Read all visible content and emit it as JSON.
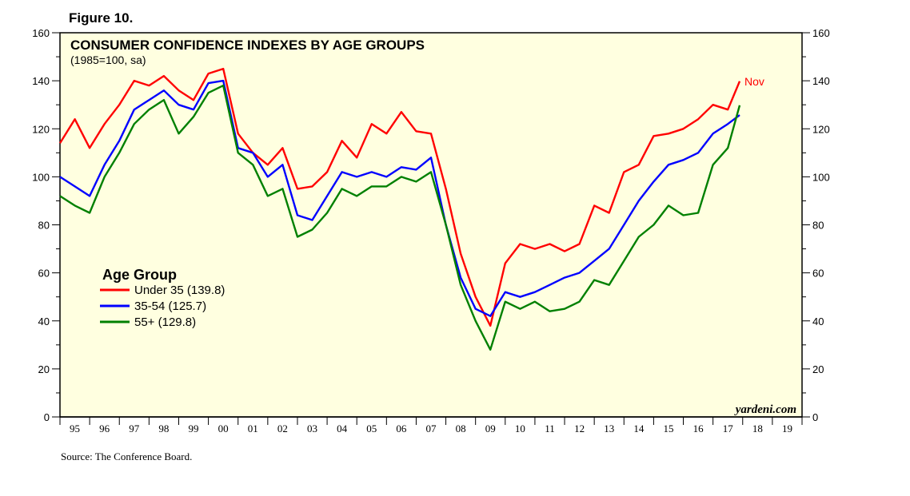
{
  "figure_label": "Figure 10.",
  "source": "Source: The Conference Board.",
  "watermark": "yardeni.com",
  "chart_data": {
    "type": "line",
    "title": "CONSUMER CONFIDENCE INDEXES BY AGE GROUPS",
    "subtitle": "(1985=100, sa)",
    "ylim": [
      0,
      160
    ],
    "y_ticks": [
      0,
      20,
      40,
      60,
      80,
      100,
      120,
      140,
      160
    ],
    "x_range": [
      1995,
      2020
    ],
    "x_labels": [
      "95",
      "96",
      "97",
      "98",
      "99",
      "00",
      "01",
      "02",
      "03",
      "04",
      "05",
      "06",
      "07",
      "08",
      "09",
      "10",
      "11",
      "12",
      "13",
      "14",
      "15",
      "16",
      "17",
      "18",
      "19"
    ],
    "grid": false,
    "background": "#ffffe0",
    "legend": {
      "title": "Age Group",
      "placement": "middle-left"
    },
    "end_annotation": "Nov",
    "series": [
      {
        "name": "Under 35 (139.8)",
        "color": "#ff0000",
        "x": [
          1995.0,
          1995.5,
          1996.0,
          1996.5,
          1997.0,
          1997.5,
          1998.0,
          1998.5,
          1999.0,
          1999.5,
          2000.0,
          2000.5,
          2001.0,
          2001.5,
          2002.0,
          2002.5,
          2003.0,
          2003.5,
          2004.0,
          2004.5,
          2005.0,
          2005.5,
          2006.0,
          2006.5,
          2007.0,
          2007.5,
          2008.0,
          2008.5,
          2009.0,
          2009.5,
          2010.0,
          2010.5,
          2011.0,
          2011.5,
          2012.0,
          2012.5,
          2013.0,
          2013.5,
          2014.0,
          2014.5,
          2015.0,
          2015.5,
          2016.0,
          2016.5,
          2017.0,
          2017.5,
          2017.9
        ],
        "y": [
          114,
          124,
          112,
          122,
          130,
          140,
          138,
          142,
          136,
          132,
          143,
          145,
          118,
          110,
          105,
          112,
          95,
          96,
          102,
          115,
          108,
          122,
          118,
          127,
          119,
          118,
          95,
          68,
          50,
          38,
          64,
          72,
          70,
          72,
          69,
          72,
          88,
          85,
          102,
          105,
          117,
          118,
          120,
          124,
          130,
          128,
          139.8
        ]
      },
      {
        "name": "35-54  (125.7)",
        "color": "#0000ff",
        "x": [
          1995.0,
          1995.5,
          1996.0,
          1996.5,
          1997.0,
          1997.5,
          1998.0,
          1998.5,
          1999.0,
          1999.5,
          2000.0,
          2000.5,
          2001.0,
          2001.5,
          2002.0,
          2002.5,
          2003.0,
          2003.5,
          2004.0,
          2004.5,
          2005.0,
          2005.5,
          2006.0,
          2006.5,
          2007.0,
          2007.5,
          2008.0,
          2008.5,
          2009.0,
          2009.5,
          2010.0,
          2010.5,
          2011.0,
          2011.5,
          2012.0,
          2012.5,
          2013.0,
          2013.5,
          2014.0,
          2014.5,
          2015.0,
          2015.5,
          2016.0,
          2016.5,
          2017.0,
          2017.5,
          2017.9
        ],
        "y": [
          100,
          96,
          92,
          105,
          115,
          128,
          132,
          136,
          130,
          128,
          139,
          140,
          112,
          110,
          100,
          105,
          84,
          82,
          92,
          102,
          100,
          102,
          100,
          104,
          103,
          108,
          80,
          58,
          45,
          42,
          52,
          50,
          52,
          55,
          58,
          60,
          65,
          70,
          80,
          90,
          98,
          105,
          107,
          110,
          118,
          122,
          125.7
        ]
      },
      {
        "name": "55+ (129.8)",
        "color": "#008000",
        "x": [
          1995.0,
          1995.5,
          1996.0,
          1996.5,
          1997.0,
          1997.5,
          1998.0,
          1998.5,
          1999.0,
          1999.5,
          2000.0,
          2000.5,
          2001.0,
          2001.5,
          2002.0,
          2002.5,
          2003.0,
          2003.5,
          2004.0,
          2004.5,
          2005.0,
          2005.5,
          2006.0,
          2006.5,
          2007.0,
          2007.5,
          2008.0,
          2008.5,
          2009.0,
          2009.5,
          2010.0,
          2010.5,
          2011.0,
          2011.5,
          2012.0,
          2012.5,
          2013.0,
          2013.5,
          2014.0,
          2014.5,
          2015.0,
          2015.5,
          2016.0,
          2016.5,
          2017.0,
          2017.5,
          2017.9
        ],
        "y": [
          92,
          88,
          85,
          100,
          110,
          122,
          128,
          132,
          118,
          125,
          135,
          138,
          110,
          105,
          92,
          95,
          75,
          78,
          85,
          95,
          92,
          96,
          96,
          100,
          98,
          102,
          80,
          55,
          40,
          28,
          48,
          45,
          48,
          44,
          45,
          48,
          57,
          55,
          65,
          75,
          80,
          88,
          84,
          85,
          105,
          112,
          129.8
        ]
      }
    ]
  }
}
